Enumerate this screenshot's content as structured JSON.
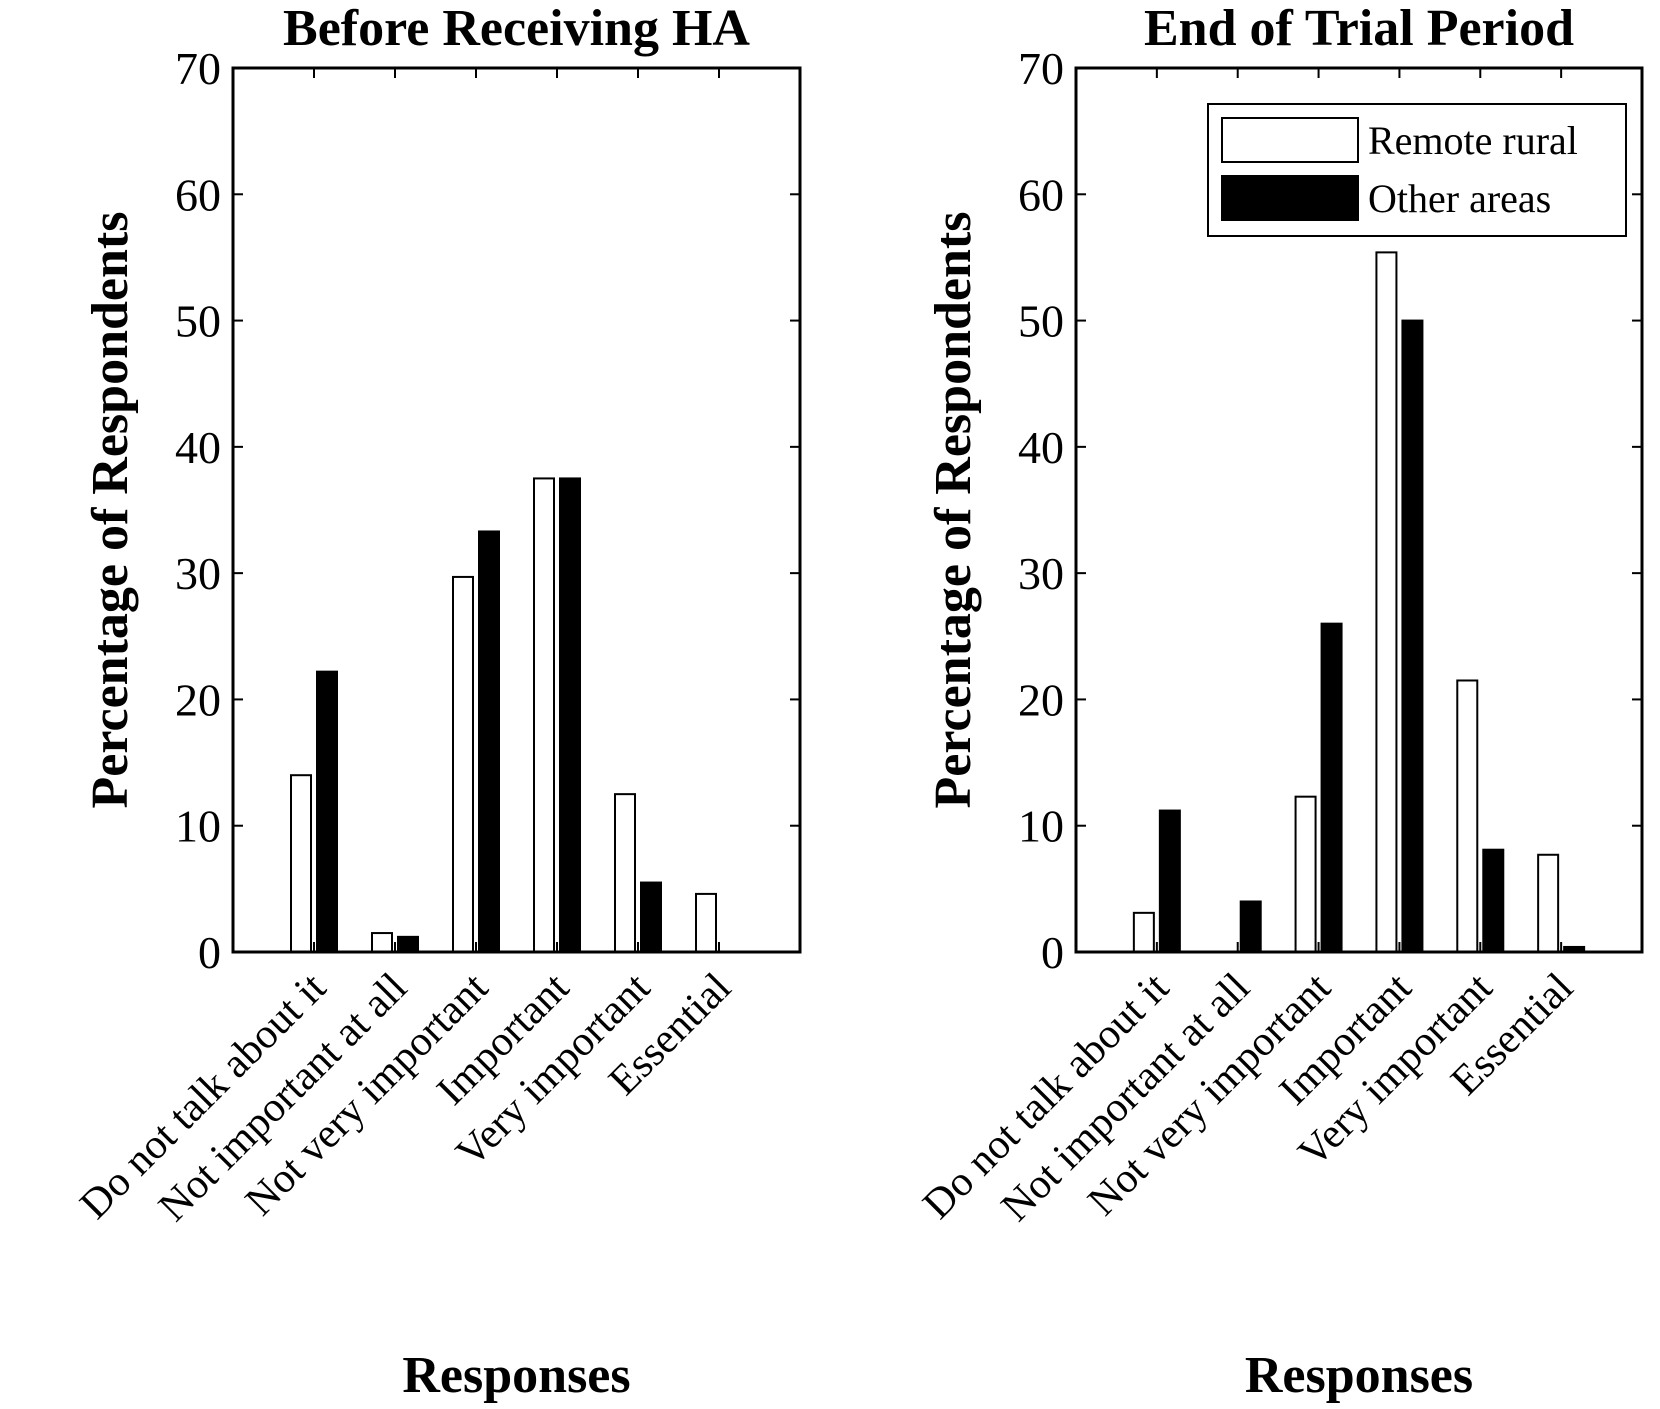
{
  "chart_data": [
    {
      "type": "bar",
      "title": "Before Receiving HA",
      "xlabel": "Responses",
      "ylabel": "Percentage of Respondents",
      "ylim": [
        0,
        70
      ],
      "yticks": [
        0,
        10,
        20,
        30,
        40,
        50,
        60,
        70
      ],
      "categories": [
        "Do not talk about it",
        "Not important at all",
        "Not very important",
        "Important",
        "Very important",
        "Essential"
      ],
      "series": [
        {
          "name": "Remote rural",
          "color": "#ffffff",
          "values": [
            14,
            1.5,
            29.7,
            37.5,
            12.5,
            4.6
          ]
        },
        {
          "name": "Other areas",
          "color": "#000000",
          "values": [
            22.2,
            1.2,
            33.3,
            37.5,
            5.5,
            0
          ]
        }
      ],
      "grid": false
    },
    {
      "type": "bar",
      "title": "End of Trial Period",
      "xlabel": "Responses",
      "ylabel": "Percentage of Respondents",
      "ylim": [
        0,
        70
      ],
      "yticks": [
        0,
        10,
        20,
        30,
        40,
        50,
        60,
        70
      ],
      "categories": [
        "Do not talk about it",
        "Not important at all",
        "Not very important",
        "Important",
        "Very important",
        "Essential"
      ],
      "series": [
        {
          "name": "Remote rural",
          "color": "#ffffff",
          "values": [
            3.1,
            0,
            12.3,
            55.4,
            21.5,
            7.7
          ]
        },
        {
          "name": "Other areas",
          "color": "#000000",
          "values": [
            11.2,
            4,
            26,
            50,
            8.1,
            0.4
          ]
        }
      ],
      "legend": {
        "position": "top-right",
        "entries": [
          "Remote rural",
          "Other areas"
        ]
      },
      "grid": false
    }
  ]
}
